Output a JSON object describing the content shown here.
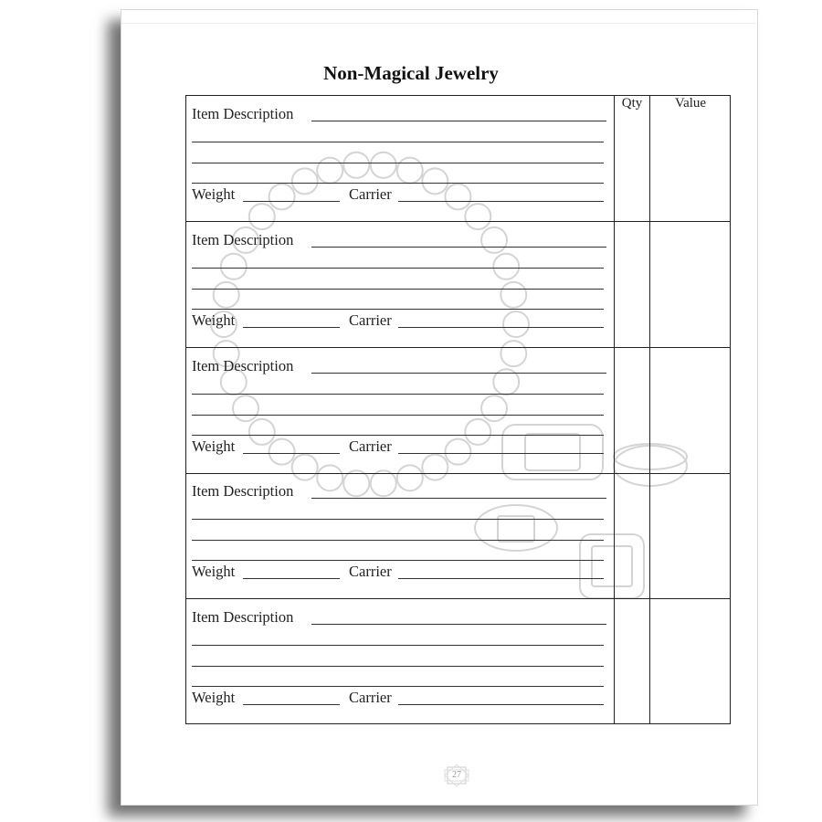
{
  "page": {
    "title": "Non-Magical Jewelry",
    "page_number": "27"
  },
  "table": {
    "headers": {
      "qty": "Qty",
      "value": "Value"
    },
    "rows": [
      {
        "description_label": "Item Description",
        "weight_label": "Weight",
        "carrier_label": "Carrier"
      },
      {
        "description_label": "Item Description",
        "weight_label": "Weight",
        "carrier_label": "Carrier"
      },
      {
        "description_label": "Item Description",
        "weight_label": "Weight",
        "carrier_label": "Carrier"
      },
      {
        "description_label": "Item Description",
        "weight_label": "Weight",
        "carrier_label": "Carrier"
      },
      {
        "description_label": "Item Description",
        "weight_label": "Weight",
        "carrier_label": "Carrier"
      }
    ]
  },
  "watermark": {
    "icon": "pearl-necklace-and-rings",
    "color": "#d4d4d4"
  }
}
